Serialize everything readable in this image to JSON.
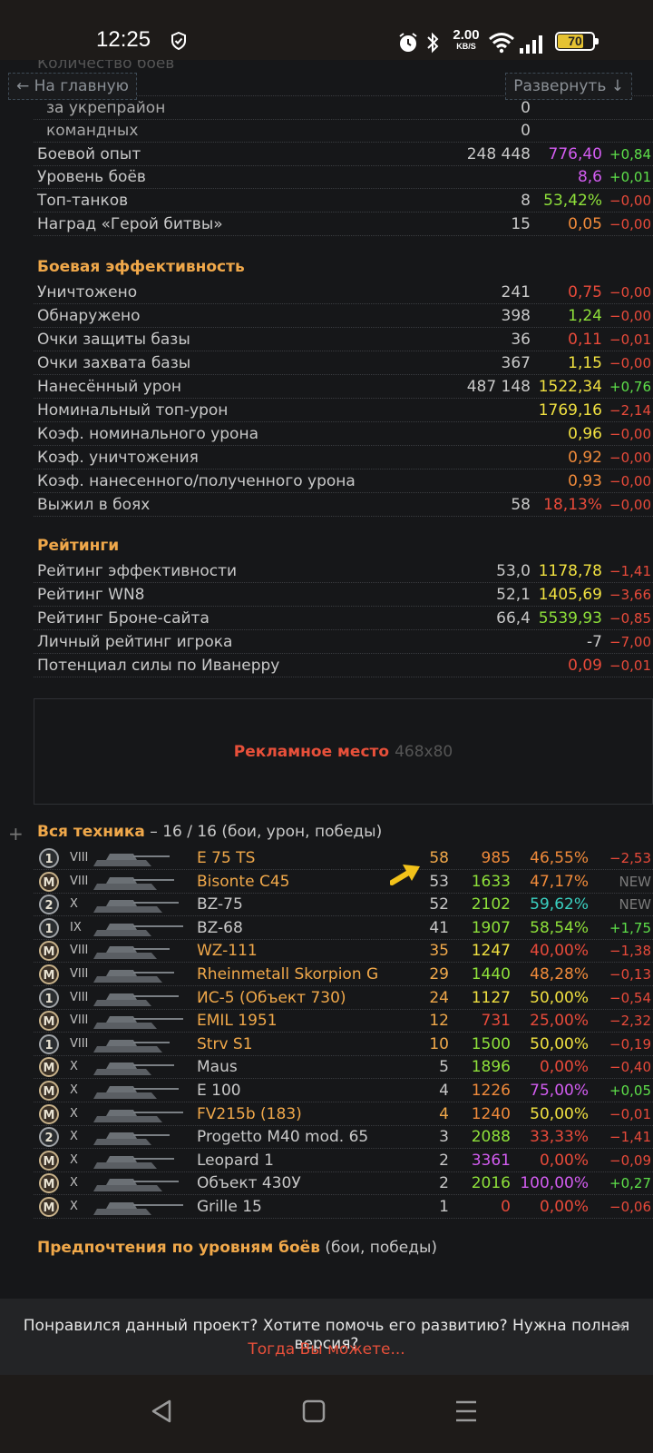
{
  "status": {
    "time": "12:25",
    "speed": "2.00",
    "speed_unit": "KB/S",
    "battery": "70",
    "battery_level": 0.7
  },
  "nav": {
    "home": "← На главную",
    "expand": "Развернуть ↓"
  },
  "top_rows": [
    {
      "label": "",
      "v1": "0",
      "v2": "",
      "v2c": "#c8c8c8",
      "v3": "",
      "v3c": "#c8c8c8"
    },
    {
      "label": "за укрепрайон",
      "indent": true,
      "v1": "0",
      "v2": "",
      "v2c": "#c8c8c8",
      "v3": "",
      "v3c": "#c8c8c8"
    },
    {
      "label": "командных",
      "indent": true,
      "v1": "0",
      "v2": "",
      "v2c": "#c8c8c8",
      "v3": "",
      "v3c": "#c8c8c8"
    },
    {
      "label": "Боевой опыт",
      "v1": "248 448",
      "v2": "776,40",
      "v2c": "#d25cf0",
      "v3": "+0,84",
      "v3c": "#5ee04a"
    },
    {
      "label": "Уровень боёв",
      "v1": "",
      "v2": "8,6",
      "v2c": "#d25cf0",
      "v3": "+0,01",
      "v3c": "#5ee04a"
    },
    {
      "label": "Топ-танков",
      "v1": "8",
      "v2": "53,42%",
      "v2c": "#8ee03a",
      "v3": "−0,00",
      "v3c": "#e84a3a"
    },
    {
      "label": "Наград «Герой битвы»",
      "v1": "15",
      "v2": "0,05",
      "v2c": "#f08a3a",
      "v3": "−0,00",
      "v3c": "#e84a3a"
    }
  ],
  "sections": {
    "combat": "Боевая эффективность",
    "ratings": "Рейтинги",
    "vehicles": "Вся техника",
    "vehicles_sub": " – 16 / 16 (бои, урон, победы)",
    "prefs": "Предпочтения по уровням боёв",
    "prefs_sub": " (бои, победы)"
  },
  "combat_rows": [
    {
      "label": "Уничтожено",
      "v1": "241",
      "v2": "0,75",
      "v2c": "#e84a3a",
      "v3": "−0,00",
      "v3c": "#e84a3a"
    },
    {
      "label": "Обнаружено",
      "v1": "398",
      "v2": "1,24",
      "v2c": "#8ee03a",
      "v3": "−0,00",
      "v3c": "#e84a3a"
    },
    {
      "label": "Очки защиты базы",
      "v1": "36",
      "v2": "0,11",
      "v2c": "#e84a3a",
      "v3": "−0,01",
      "v3c": "#e84a3a"
    },
    {
      "label": "Очки захвата базы",
      "v1": "367",
      "v2": "1,15",
      "v2c": "#f0e040",
      "v3": "−0,00",
      "v3c": "#e84a3a"
    },
    {
      "label": "Нанесённый урон",
      "v1": "487 148",
      "v2": "1522,34",
      "v2c": "#f0e040",
      "v3": "+0,76",
      "v3c": "#5ee04a"
    },
    {
      "label": "Номинальный топ-урон",
      "v1": "",
      "v2": "1769,16",
      "v2c": "#f0e040",
      "v3": "−2,14",
      "v3c": "#e84a3a"
    },
    {
      "label": "Коэф. номинального урона",
      "v1": "",
      "v2": "0,96",
      "v2c": "#f0e040",
      "v3": "−0,00",
      "v3c": "#e84a3a"
    },
    {
      "label": "Коэф. уничтожения",
      "v1": "",
      "v2": "0,92",
      "v2c": "#f08a3a",
      "v3": "−0,00",
      "v3c": "#e84a3a"
    },
    {
      "label": "Коэф. нанесенного/полученного урона",
      "v1": "",
      "v2": "0,93",
      "v2c": "#f08a3a",
      "v3": "−0,00",
      "v3c": "#e84a3a"
    },
    {
      "label": "Выжил в боях",
      "v1": "58",
      "v2": "18,13%",
      "v2c": "#e84a3a",
      "v3": "−0,00",
      "v3c": "#e84a3a"
    }
  ],
  "rating_rows": [
    {
      "label": "Рейтинг эффективности",
      "v1": "53,0",
      "v2": "1178,78",
      "v2c": "#f0e040",
      "v3": "−1,41",
      "v3c": "#e84a3a"
    },
    {
      "label": "Рейтинг WN8",
      "v1": "52,1",
      "v2": "1405,69",
      "v2c": "#f0e040",
      "v3": "−3,66",
      "v3c": "#e84a3a"
    },
    {
      "label": "Рейтинг Броне-сайта",
      "v1": "66,4",
      "v2": "5539,93",
      "v2c": "#8ee03a",
      "v3": "−0,85",
      "v3c": "#e84a3a"
    },
    {
      "label": "Личный рейтинг игрока",
      "v1": "",
      "v2": "-7",
      "v2c": "#c8c8c8",
      "v3": "−7,00",
      "v3c": "#e84a3a"
    },
    {
      "label": "Потенциал силы по Иванерру",
      "v1": "",
      "v2": "0,09",
      "v2c": "#e84a3a",
      "v3": "−0,01",
      "v3c": "#e84a3a"
    }
  ],
  "ad": {
    "label": "Рекламное место",
    "size": "468x80"
  },
  "vehicles": [
    {
      "badge": "1",
      "tier": "VIII",
      "name": "E 75 TS",
      "nc": "#f0a84a",
      "battles": "58",
      "bc": "#f0a84a",
      "dmg": "985",
      "dc": "#f08a3a",
      "wr": "46,55%",
      "wc": "#f08a3a",
      "delta": "−2,53",
      "dlc": "#e84a3a"
    },
    {
      "badge": "M",
      "tier": "VIII",
      "name": "Bisonte C45",
      "nc": "#f0a84a",
      "battles": "53",
      "bc": "#c8c8c8",
      "dmg": "1633",
      "dc": "#8ee03a",
      "wr": "47,17%",
      "wc": "#f08a3a",
      "delta": "NEW",
      "dlc": "#7a7a7a"
    },
    {
      "badge": "2",
      "tier": "X",
      "name": "BZ-75",
      "nc": "#c8c8c8",
      "battles": "52",
      "bc": "#c8c8c8",
      "dmg": "2102",
      "dc": "#8ee03a",
      "wr": "59,62%",
      "wc": "#3ad0c0",
      "delta": "NEW",
      "dlc": "#7a7a7a"
    },
    {
      "badge": "1",
      "tier": "IX",
      "name": "BZ-68",
      "nc": "#c8c8c8",
      "battles": "41",
      "bc": "#c8c8c8",
      "dmg": "1907",
      "dc": "#8ee03a",
      "wr": "58,54%",
      "wc": "#8ee03a",
      "delta": "+1,75",
      "dlc": "#5ee04a"
    },
    {
      "badge": "M",
      "tier": "VIII",
      "name": "WZ-111",
      "nc": "#f0a84a",
      "battles": "35",
      "bc": "#f0a84a",
      "dmg": "1247",
      "dc": "#f0e040",
      "wr": "40,00%",
      "wc": "#e84a3a",
      "delta": "−1,38",
      "dlc": "#e84a3a"
    },
    {
      "badge": "M",
      "tier": "VIII",
      "name": "Rheinmetall Skorpion G",
      "nc": "#f0a84a",
      "battles": "29",
      "bc": "#f0a84a",
      "dmg": "1440",
      "dc": "#8ee03a",
      "wr": "48,28%",
      "wc": "#f08a3a",
      "delta": "−0,13",
      "dlc": "#e84a3a"
    },
    {
      "badge": "1",
      "tier": "VIII",
      "name": "ИС-5 (Объект 730)",
      "nc": "#f0a84a",
      "battles": "24",
      "bc": "#f0a84a",
      "dmg": "1127",
      "dc": "#f0e040",
      "wr": "50,00%",
      "wc": "#f0e040",
      "delta": "−0,54",
      "dlc": "#e84a3a"
    },
    {
      "badge": "M",
      "tier": "VIII",
      "name": "EMIL 1951",
      "nc": "#f0a84a",
      "battles": "12",
      "bc": "#f0a84a",
      "dmg": "731",
      "dc": "#e84a3a",
      "wr": "25,00%",
      "wc": "#e84a3a",
      "delta": "−2,32",
      "dlc": "#e84a3a"
    },
    {
      "badge": "1",
      "tier": "VIII",
      "name": "Strv S1",
      "nc": "#f0a84a",
      "battles": "10",
      "bc": "#f0a84a",
      "dmg": "1500",
      "dc": "#8ee03a",
      "wr": "50,00%",
      "wc": "#f0e040",
      "delta": "−0,19",
      "dlc": "#e84a3a"
    },
    {
      "badge": "M",
      "tier": "X",
      "name": "Maus",
      "nc": "#c8c8c8",
      "battles": "5",
      "bc": "#c8c8c8",
      "dmg": "1896",
      "dc": "#8ee03a",
      "wr": "0,00%",
      "wc": "#e84a3a",
      "delta": "−0,40",
      "dlc": "#e84a3a"
    },
    {
      "badge": "M",
      "tier": "X",
      "name": "E 100",
      "nc": "#c8c8c8",
      "battles": "4",
      "bc": "#c8c8c8",
      "dmg": "1226",
      "dc": "#f08a3a",
      "wr": "75,00%",
      "wc": "#d25cf0",
      "delta": "+0,05",
      "dlc": "#5ee04a"
    },
    {
      "badge": "M",
      "tier": "X",
      "name": "FV215b (183)",
      "nc": "#f0a84a",
      "battles": "4",
      "bc": "#f0a84a",
      "dmg": "1240",
      "dc": "#f08a3a",
      "wr": "50,00%",
      "wc": "#f0e040",
      "delta": "−0,01",
      "dlc": "#e84a3a"
    },
    {
      "badge": "2",
      "tier": "X",
      "name": "Progetto M40 mod. 65",
      "nc": "#c8c8c8",
      "battles": "3",
      "bc": "#c8c8c8",
      "dmg": "2088",
      "dc": "#8ee03a",
      "wr": "33,33%",
      "wc": "#e84a3a",
      "delta": "−1,41",
      "dlc": "#e84a3a"
    },
    {
      "badge": "M",
      "tier": "X",
      "name": "Leopard 1",
      "nc": "#c8c8c8",
      "battles": "2",
      "bc": "#c8c8c8",
      "dmg": "3361",
      "dc": "#d25cf0",
      "wr": "0,00%",
      "wc": "#e84a3a",
      "delta": "−0,09",
      "dlc": "#e84a3a"
    },
    {
      "badge": "M",
      "tier": "X",
      "name": "Объект 430У",
      "nc": "#c8c8c8",
      "battles": "2",
      "bc": "#c8c8c8",
      "dmg": "2016",
      "dc": "#8ee03a",
      "wr": "100,00%",
      "wc": "#d25cf0",
      "delta": "+0,27",
      "dlc": "#5ee04a"
    },
    {
      "badge": "M",
      "tier": "X",
      "name": "Grille 15",
      "nc": "#c8c8c8",
      "battles": "1",
      "bc": "#c8c8c8",
      "dmg": "0",
      "dc": "#e84a3a",
      "wr": "0,00%",
      "wc": "#e84a3a",
      "delta": "−0,06",
      "dlc": "#e84a3a"
    }
  ],
  "banner": {
    "text": "Понравился данный проект? Хотите помочь его развитию? Нужна полная версия?",
    "link": "Тогда Вы можете...",
    "close": "×"
  },
  "icons": {
    "badge_mastery": "mastery-badge-icon",
    "tank": "tank-silhouette-icon",
    "arrow": "yellow-arrow-icon"
  }
}
